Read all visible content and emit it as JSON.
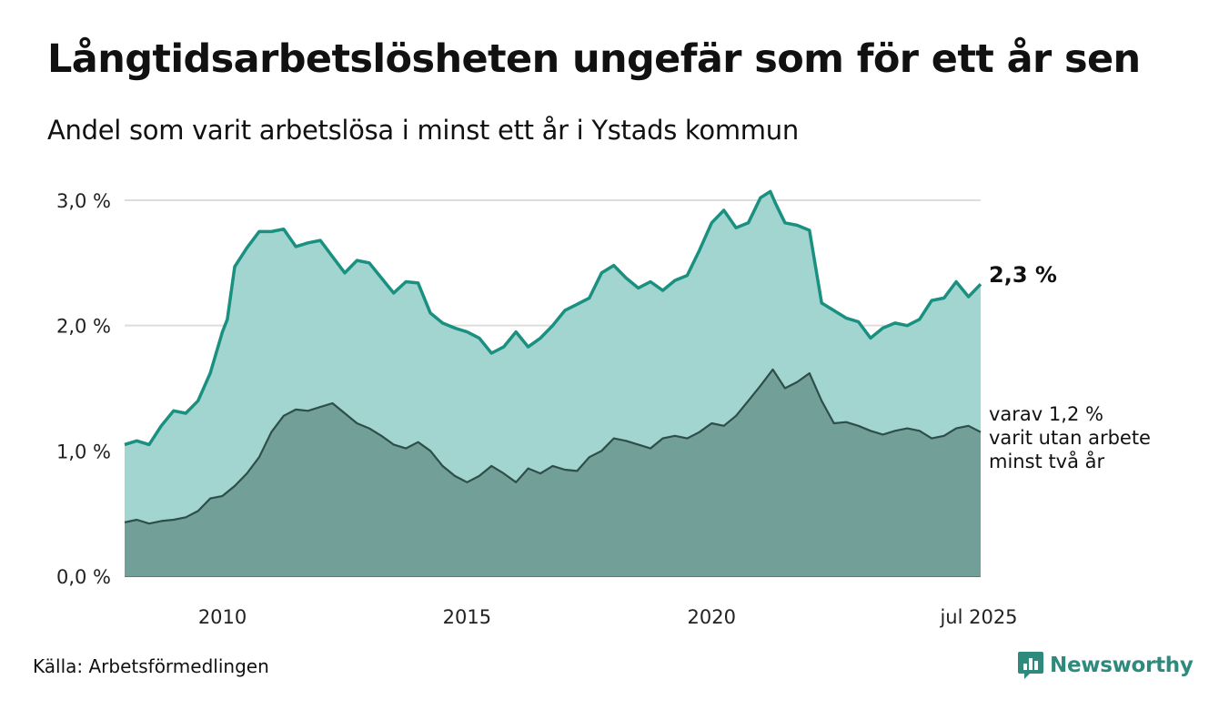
{
  "header": {
    "title": "Långtidsarbetslösheten ungefär som för ett år sen",
    "subtitle": "Andel som varit arbetslösa i minst ett år i Ystads kommun"
  },
  "footer": {
    "source": "Källa: Arbetsförmedlingen",
    "brand": "Newsworthy",
    "brand_icon": "newsworthy-logo-icon"
  },
  "colors": {
    "series1_fill": "#a3d5d0",
    "series1_line": "#1a9080",
    "series2_fill": "#729f98",
    "series2_line": "#2e4e49",
    "grid": "#dddddd",
    "brand": "#2d8a7c"
  },
  "chart_data": {
    "type": "area",
    "x_tick_labels": [
      "2010",
      "2015",
      "2020",
      "jul 2025"
    ],
    "x_tick_values": [
      2010,
      2015,
      2020,
      2025.5
    ],
    "xlim": [
      2008.0,
      2025.5
    ],
    "y_tick_labels": [
      "0,0 %",
      "1,0 %",
      "2,0 %",
      "3,0 %"
    ],
    "y_tick_values": [
      0,
      1,
      2,
      3
    ],
    "ylim": [
      0,
      3
    ],
    "grid": true,
    "end_label": "2,3 %",
    "note_lines": [
      "varav 1,2 %",
      "varit utan arbete",
      "minst två år"
    ],
    "series": [
      {
        "x": [
          2008.0,
          2008.25,
          2008.5,
          2008.75,
          2009.0,
          2009.25,
          2009.5,
          2009.75,
          2010.0,
          2010.1,
          2010.25,
          2010.5,
          2010.75,
          2011.0,
          2011.25,
          2011.5,
          2011.75,
          2012.0,
          2012.25,
          2012.5,
          2012.75,
          2013.0,
          2013.25,
          2013.5,
          2013.75,
          2014.0,
          2014.25,
          2014.5,
          2014.75,
          2015.0,
          2015.25,
          2015.5,
          2015.75,
          2016.0,
          2016.25,
          2016.5,
          2016.75,
          2017.0,
          2017.25,
          2017.5,
          2017.75,
          2018.0,
          2018.25,
          2018.5,
          2018.75,
          2019.0,
          2019.25,
          2019.5,
          2019.75,
          2020.0,
          2020.25,
          2020.5,
          2020.75,
          2021.0,
          2021.2,
          2021.3,
          2021.5,
          2021.75,
          2022.0,
          2022.25,
          2022.5,
          2022.75,
          2023.0,
          2023.25,
          2023.5,
          2023.75,
          2024.0,
          2024.25,
          2024.5,
          2024.75,
          2025.0,
          2025.25,
          2025.5
        ],
        "values": [
          1.05,
          1.08,
          1.05,
          1.2,
          1.32,
          1.3,
          1.4,
          1.62,
          1.95,
          2.05,
          2.47,
          2.62,
          2.75,
          2.75,
          2.77,
          2.63,
          2.66,
          2.68,
          2.55,
          2.42,
          2.52,
          2.5,
          2.38,
          2.26,
          2.35,
          2.34,
          2.1,
          2.02,
          1.98,
          1.95,
          1.9,
          1.78,
          1.83,
          1.95,
          1.83,
          1.9,
          2.0,
          2.12,
          2.17,
          2.22,
          2.42,
          2.48,
          2.38,
          2.3,
          2.35,
          2.28,
          2.36,
          2.4,
          2.6,
          2.82,
          2.92,
          2.78,
          2.82,
          3.02,
          3.07,
          2.98,
          2.82,
          2.8,
          2.76,
          2.18,
          2.12,
          2.06,
          2.03,
          1.9,
          1.98,
          2.02,
          2.0,
          2.05,
          2.2,
          2.22,
          2.35,
          2.23,
          2.33
        ]
      },
      {
        "x": [
          2008.0,
          2008.25,
          2008.5,
          2008.75,
          2009.0,
          2009.25,
          2009.5,
          2009.75,
          2010.0,
          2010.25,
          2010.5,
          2010.75,
          2011.0,
          2011.25,
          2011.5,
          2011.75,
          2012.0,
          2012.25,
          2012.5,
          2012.75,
          2013.0,
          2013.25,
          2013.5,
          2013.75,
          2014.0,
          2014.25,
          2014.5,
          2014.75,
          2015.0,
          2015.25,
          2015.5,
          2015.75,
          2016.0,
          2016.25,
          2016.5,
          2016.75,
          2017.0,
          2017.25,
          2017.5,
          2017.75,
          2018.0,
          2018.25,
          2018.5,
          2018.75,
          2019.0,
          2019.25,
          2019.5,
          2019.75,
          2020.0,
          2020.25,
          2020.5,
          2020.75,
          2021.0,
          2021.25,
          2021.5,
          2021.75,
          2022.0,
          2022.25,
          2022.5,
          2022.75,
          2023.0,
          2023.25,
          2023.5,
          2023.75,
          2024.0,
          2024.25,
          2024.5,
          2024.75,
          2025.0,
          2025.25,
          2025.5
        ],
        "values": [
          0.43,
          0.45,
          0.42,
          0.44,
          0.45,
          0.47,
          0.52,
          0.62,
          0.64,
          0.72,
          0.82,
          0.95,
          1.15,
          1.28,
          1.33,
          1.32,
          1.35,
          1.38,
          1.3,
          1.22,
          1.18,
          1.12,
          1.05,
          1.02,
          1.07,
          1.0,
          0.88,
          0.8,
          0.75,
          0.8,
          0.88,
          0.82,
          0.75,
          0.86,
          0.82,
          0.88,
          0.85,
          0.84,
          0.95,
          1.0,
          1.1,
          1.08,
          1.05,
          1.02,
          1.1,
          1.12,
          1.1,
          1.15,
          1.22,
          1.2,
          1.28,
          1.4,
          1.52,
          1.65,
          1.5,
          1.55,
          1.62,
          1.4,
          1.22,
          1.23,
          1.2,
          1.16,
          1.13,
          1.16,
          1.18,
          1.16,
          1.1,
          1.12,
          1.18,
          1.2,
          1.15
        ]
      }
    ]
  }
}
